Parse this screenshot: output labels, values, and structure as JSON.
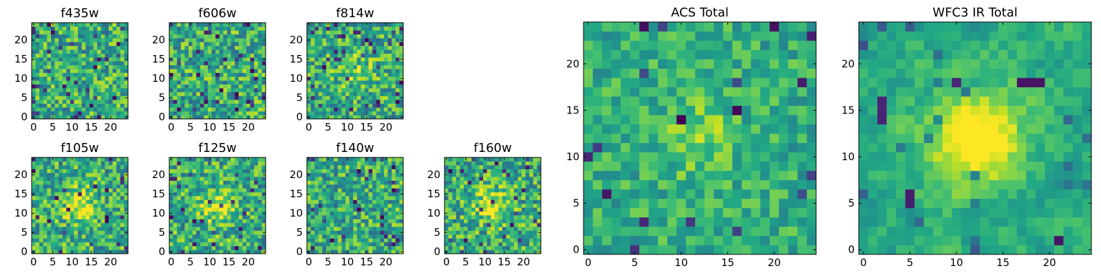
{
  "chart_data": [
    {
      "type": "heatmap",
      "title": "f435w",
      "grid_size": 25,
      "xticks": [
        "0",
        "5",
        "10",
        "15",
        "20"
      ],
      "yticks": [
        "0",
        "5",
        "10",
        "15",
        "20"
      ],
      "colormap": "viridis",
      "structure": "noise",
      "seed": 11
    },
    {
      "type": "heatmap",
      "title": "f606w",
      "grid_size": 25,
      "xticks": [
        "0",
        "5",
        "10",
        "15",
        "20"
      ],
      "yticks": [
        "0",
        "5",
        "10",
        "15",
        "20"
      ],
      "colormap": "viridis",
      "structure": "noise",
      "seed": 22
    },
    {
      "type": "heatmap",
      "title": "f814w",
      "grid_size": 25,
      "xticks": [
        "0",
        "5",
        "10",
        "15",
        "20"
      ],
      "yticks": [
        "0",
        "5",
        "10",
        "15",
        "20"
      ],
      "colormap": "viridis",
      "structure": "faint central source",
      "seed": 33
    },
    {
      "type": "heatmap",
      "title": "f105w",
      "grid_size": 25,
      "xticks": [
        "0",
        "5",
        "10",
        "15",
        "20"
      ],
      "yticks": [
        "0",
        "5",
        "10",
        "15",
        "20"
      ],
      "colormap": "viridis",
      "structure": "central source",
      "seed": 44
    },
    {
      "type": "heatmap",
      "title": "f125w",
      "grid_size": 25,
      "xticks": [
        "0",
        "5",
        "10",
        "15",
        "20"
      ],
      "yticks": [
        "0",
        "5",
        "10",
        "15",
        "20"
      ],
      "colormap": "viridis",
      "structure": "central source",
      "seed": 55
    },
    {
      "type": "heatmap",
      "title": "f140w",
      "grid_size": 25,
      "xticks": [
        "0",
        "5",
        "10",
        "15",
        "20"
      ],
      "yticks": [
        "0",
        "5",
        "10",
        "15",
        "20"
      ],
      "colormap": "viridis",
      "structure": "noise",
      "seed": 66
    },
    {
      "type": "heatmap",
      "title": "f160w",
      "grid_size": 25,
      "xticks": [
        "0",
        "5",
        "10",
        "15",
        "20"
      ],
      "yticks": [
        "0",
        "5",
        "10",
        "15",
        "20"
      ],
      "colormap": "viridis",
      "structure": "central source",
      "seed": 77
    },
    {
      "type": "heatmap",
      "title": "ACS Total",
      "grid_size": 25,
      "xticks": [
        "0",
        "5",
        "10",
        "15",
        "20"
      ],
      "yticks": [
        "0",
        "5",
        "10",
        "15",
        "20"
      ],
      "colormap": "viridis",
      "structure": "faint central source",
      "seed": 88
    },
    {
      "type": "heatmap",
      "title": "WFC3 IR Total",
      "grid_size": 25,
      "xticks": [
        "0",
        "5",
        "10",
        "15",
        "20"
      ],
      "yticks": [
        "0",
        "5",
        "10",
        "15",
        "20"
      ],
      "colormap": "viridis",
      "structure": "bright central source",
      "seed": 99
    }
  ]
}
